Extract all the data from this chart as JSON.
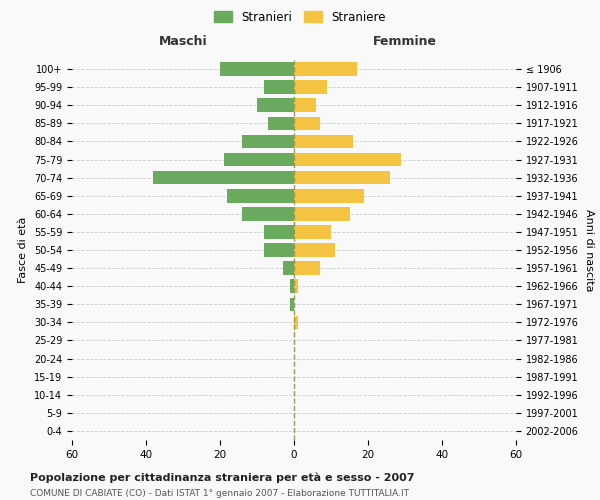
{
  "age_groups": [
    "0-4",
    "5-9",
    "10-14",
    "15-19",
    "20-24",
    "25-29",
    "30-34",
    "35-39",
    "40-44",
    "45-49",
    "50-54",
    "55-59",
    "60-64",
    "65-69",
    "70-74",
    "75-79",
    "80-84",
    "85-89",
    "90-94",
    "95-99",
    "100+"
  ],
  "birth_years": [
    "2002-2006",
    "1997-2001",
    "1992-1996",
    "1987-1991",
    "1982-1986",
    "1977-1981",
    "1972-1976",
    "1967-1971",
    "1962-1966",
    "1957-1961",
    "1952-1956",
    "1947-1951",
    "1942-1946",
    "1937-1941",
    "1932-1936",
    "1927-1931",
    "1922-1926",
    "1917-1921",
    "1912-1916",
    "1907-1911",
    "≤ 1906"
  ],
  "males": [
    20,
    8,
    10,
    7,
    14,
    19,
    38,
    18,
    14,
    8,
    8,
    3,
    1,
    1,
    0,
    0,
    0,
    0,
    0,
    0,
    0
  ],
  "females": [
    17,
    9,
    6,
    7,
    16,
    29,
    26,
    19,
    15,
    10,
    11,
    7,
    1,
    0,
    1,
    0,
    0,
    0,
    0,
    0,
    0
  ],
  "male_color": "#6aaa5e",
  "female_color": "#f5c342",
  "background_color": "#f9f9f9",
  "grid_color": "#cccccc",
  "title": "Popolazione per cittadinanza straniera per età e sesso - 2007",
  "subtitle": "COMUNE DI CABIATE (CO) - Dati ISTAT 1° gennaio 2007 - Elaborazione TUTTITALIA.IT",
  "xlabel_left": "Maschi",
  "xlabel_right": "Femmine",
  "ylabel_left": "Fasce di età",
  "ylabel_right": "Anni di nascita",
  "legend_male": "Stranieri",
  "legend_female": "Straniere",
  "xlim": 60,
  "dashed_line_color": "#999955"
}
